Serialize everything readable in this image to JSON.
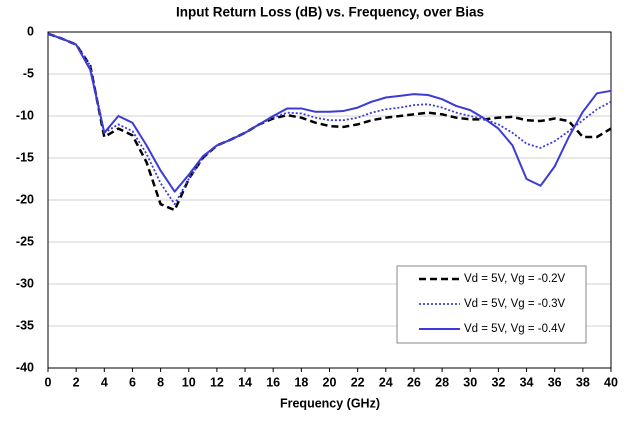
{
  "chart_data": {
    "type": "line",
    "title": "Input Return Loss (dB) vs. Frequency, over Bias",
    "x_label": "Frequency (GHz)",
    "x": [
      0,
      1,
      2,
      3,
      4,
      5,
      6,
      7,
      8,
      9,
      10,
      11,
      12,
      13,
      14,
      15,
      16,
      17,
      18,
      19,
      20,
      21,
      22,
      23,
      24,
      25,
      26,
      27,
      28,
      29,
      30,
      31,
      32,
      33,
      34,
      35,
      36,
      37,
      38,
      39,
      40
    ],
    "series": [
      {
        "name": "Vd = 5V, Vg = -0.2V",
        "color": "#000000",
        "style": "dashed",
        "values": [
          -0.2,
          -0.8,
          -1.5,
          -4,
          -12.5,
          -11.5,
          -12.3,
          -15.5,
          -20.5,
          -21.2,
          -17.5,
          -15,
          -13.5,
          -12.8,
          -12,
          -11,
          -10.3,
          -9.9,
          -10.2,
          -10.8,
          -11.2,
          -11.3,
          -11,
          -10.5,
          -10.2,
          -10,
          -9.8,
          -9.6,
          -9.8,
          -10.2,
          -10.4,
          -10.4,
          -10.2,
          -10.1,
          -10.5,
          -10.6,
          -10.3,
          -10.6,
          -12.5,
          -12.5,
          -11.5
        ]
      },
      {
        "name": "Vd = 5V, Vg = -0.3V",
        "color": "#3b3bd6",
        "style": "dotted",
        "values": [
          -0.2,
          -0.8,
          -1.5,
          -4,
          -12,
          -11,
          -11.8,
          -14.5,
          -18,
          -20.5,
          -17.5,
          -15,
          -13.5,
          -12.8,
          -12,
          -11,
          -10.2,
          -9.6,
          -9.7,
          -10.2,
          -10.5,
          -10.5,
          -10.2,
          -9.6,
          -9.2,
          -9,
          -8.7,
          -8.6,
          -9,
          -9.6,
          -10,
          -10.4,
          -11,
          -12,
          -13.3,
          -13.8,
          -13,
          -11.8,
          -10.5,
          -9.2,
          -8.3
        ]
      },
      {
        "name": "Vd = 5V, Vg = -0.4V",
        "color": "#3b3bd6",
        "style": "solid",
        "values": [
          -0.2,
          -0.8,
          -1.5,
          -4.5,
          -12,
          -10,
          -10.8,
          -13.5,
          -16.5,
          -19,
          -17,
          -14.8,
          -13.5,
          -12.8,
          -12,
          -11,
          -10,
          -9.1,
          -9.1,
          -9.5,
          -9.5,
          -9.4,
          -9,
          -8.3,
          -7.8,
          -7.6,
          -7.4,
          -7.5,
          -8,
          -8.8,
          -9.3,
          -10.3,
          -11.5,
          -13.5,
          -17.5,
          -18.3,
          -16,
          -12.5,
          -9.5,
          -7.3,
          -7
        ]
      }
    ],
    "xlim": [
      0,
      40
    ],
    "xticks": [
      0,
      2,
      4,
      6,
      8,
      10,
      12,
      14,
      16,
      18,
      20,
      22,
      24,
      26,
      28,
      30,
      32,
      34,
      36,
      38,
      40
    ],
    "ylim": [
      -40,
      0
    ],
    "yticks": [
      0,
      -5,
      -10,
      -15,
      -20,
      -25,
      -30,
      -35,
      -40
    ],
    "grid": true,
    "legend": "lower right"
  }
}
